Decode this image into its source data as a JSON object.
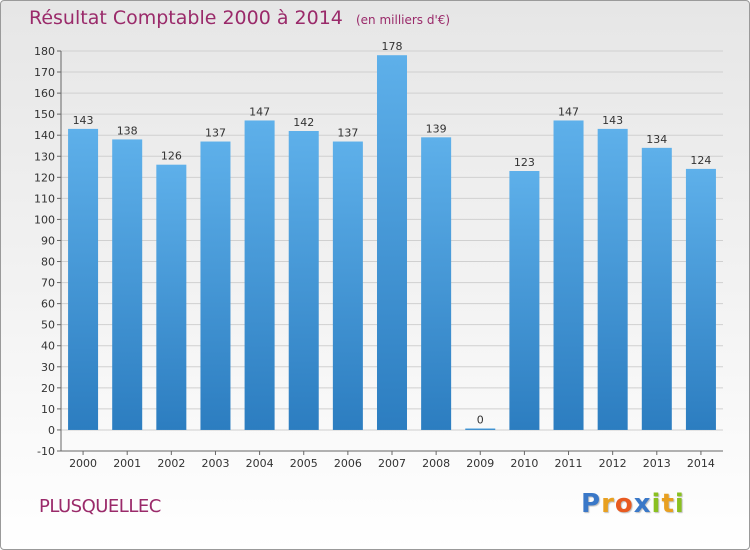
{
  "title": "Résultat Comptable 2000 à 2014",
  "subtitle": "(en milliers d'€)",
  "commune": "PLUSQUELLEC",
  "logo": {
    "letters": [
      "P",
      "r",
      "o",
      "x",
      "i",
      "t",
      "i"
    ],
    "colors": [
      "#3a78c8",
      "#e8a020",
      "#e85a20",
      "#3a78c8",
      "#8ac020",
      "#e8a020",
      "#8ac020"
    ]
  },
  "colors": {
    "bar_top": "#5eb0ea",
    "bar_bottom": "#2c7dc0",
    "grid": "#d0d0d0",
    "axis_text": "#333333",
    "title": "#9a2a6a"
  },
  "chart_data": {
    "type": "bar",
    "title": "Résultat Comptable 2000 à 2014",
    "subtitle": "(en milliers d'€)",
    "categories": [
      "2000",
      "2001",
      "2002",
      "2003",
      "2004",
      "2005",
      "2006",
      "2007",
      "2008",
      "2009",
      "2010",
      "2011",
      "2012",
      "2013",
      "2014"
    ],
    "values": [
      143,
      138,
      126,
      137,
      147,
      142,
      137,
      178,
      139,
      0,
      123,
      147,
      143,
      134,
      124
    ],
    "data_labels": [
      "143",
      "138",
      "126",
      "137",
      "147",
      "142",
      "137",
      "178",
      "139",
      "0",
      "123",
      "147",
      "143",
      "134",
      "124"
    ],
    "ylim": [
      -10,
      180
    ],
    "yticks": [
      -10,
      0,
      10,
      20,
      30,
      40,
      50,
      60,
      70,
      80,
      90,
      100,
      110,
      120,
      130,
      140,
      150,
      160,
      170,
      180
    ],
    "grid": true,
    "legend": false
  }
}
